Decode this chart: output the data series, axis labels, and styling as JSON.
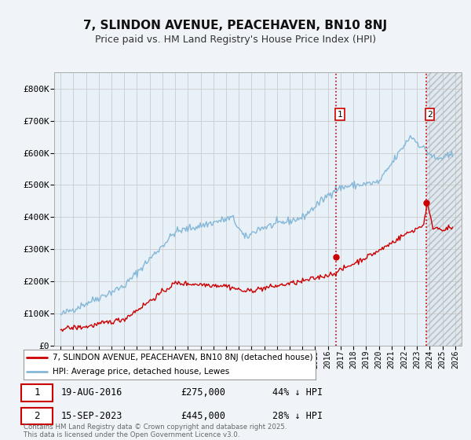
{
  "title": "7, SLINDON AVENUE, PEACEHAVEN, BN10 8NJ",
  "subtitle": "Price paid vs. HM Land Registry's House Price Index (HPI)",
  "legend_label_red": "7, SLINDON AVENUE, PEACEHAVEN, BN10 8NJ (detached house)",
  "legend_label_blue": "HPI: Average price, detached house, Lewes",
  "red_color": "#cc0000",
  "blue_color": "#85b8d8",
  "marker1_date": 2016.63,
  "marker1_red_y": 275000,
  "marker1_text": "19-AUG-2016",
  "marker1_price": "£275,000",
  "marker1_hpi": "44% ↓ HPI",
  "marker2_date": 2023.71,
  "marker2_red_y": 445000,
  "marker2_text": "15-SEP-2023",
  "marker2_price": "£445,000",
  "marker2_hpi": "28% ↓ HPI",
  "footer": "Contains HM Land Registry data © Crown copyright and database right 2025.\nThis data is licensed under the Open Government Licence v3.0.",
  "ylim": [
    0,
    850000
  ],
  "xlim": [
    1994.5,
    2026.5
  ],
  "background_color": "#f0f4f8",
  "plot_bg_color": "#ffffff",
  "plot_area_tint": "#e8f0f8"
}
